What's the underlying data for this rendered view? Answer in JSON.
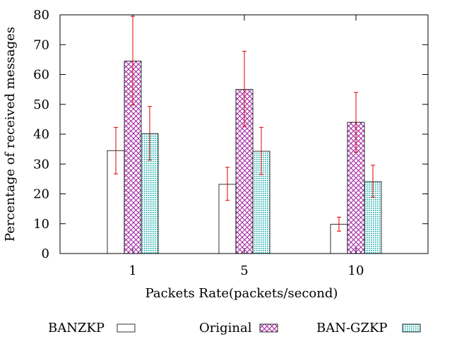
{
  "chart_data": {
    "type": "bar",
    "title": "",
    "xlabel": "Packets Rate(packets/second)",
    "ylabel": "Percentage of received messages",
    "ylim": [
      0,
      80
    ],
    "yticks": [
      0,
      10,
      20,
      30,
      40,
      50,
      60,
      70,
      80
    ],
    "categories": [
      "1",
      "5",
      "10"
    ],
    "series": [
      {
        "name": "BANZKP",
        "pattern": "none",
        "color": "#000000",
        "values": [
          34.5,
          23.2,
          9.8
        ],
        "error_low": [
          26.7,
          17.8,
          7.5
        ],
        "error_high": [
          42.3,
          28.9,
          12.2
        ]
      },
      {
        "name": "Original",
        "pattern": "crosshatch",
        "color": "#a020a0",
        "values": [
          64.5,
          55.0,
          44.0
        ],
        "error_low": [
          49.8,
          42.6,
          34.0
        ],
        "error_high": [
          79.5,
          67.8,
          54.0
        ]
      },
      {
        "name": "BAN-GZKP",
        "pattern": "dots",
        "color": "#16a9a9",
        "values": [
          40.2,
          34.3,
          24.1
        ],
        "error_low": [
          31.3,
          26.5,
          18.9
        ],
        "error_high": [
          49.3,
          42.3,
          29.6
        ]
      }
    ],
    "error_bar_color": "#dd0000",
    "legend_position": "bottom"
  }
}
